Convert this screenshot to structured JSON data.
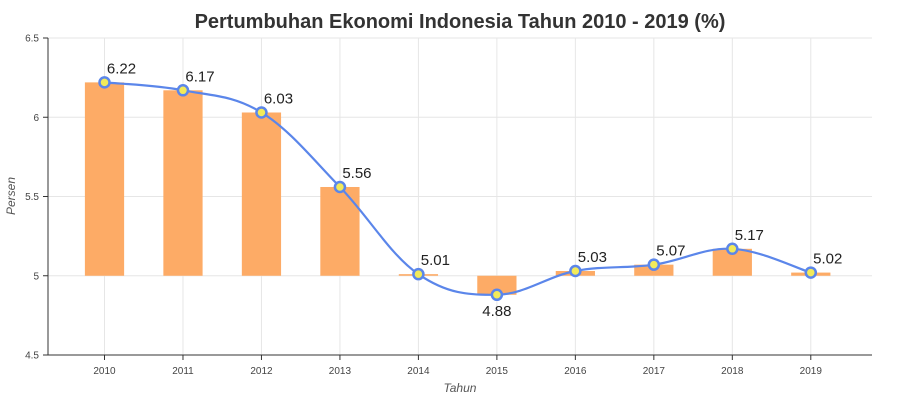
{
  "chart_data": {
    "type": "bar",
    "title": "Pertumbuhan Ekonomi Indonesia Tahun 2010 - 2019 (%)",
    "xlabel": "Tahun",
    "ylabel": "Persen",
    "categories": [
      "2010",
      "2011",
      "2012",
      "2013",
      "2014",
      "2015",
      "2016",
      "2017",
      "2018",
      "2019"
    ],
    "values": [
      6.22,
      6.17,
      6.03,
      5.56,
      5.01,
      4.88,
      5.03,
      5.07,
      5.17,
      5.02
    ],
    "data_labels": [
      "6.22",
      "6.17",
      "6.03",
      "5.56",
      "5.01",
      "4.88",
      "5.03",
      "5.07",
      "5.17",
      "5.02"
    ],
    "overlay": "line",
    "bar_baseline": 5,
    "ylim": [
      4.5,
      6.5
    ],
    "yticks": [
      4.5,
      5,
      5.5,
      6,
      6.5
    ],
    "ytick_labels": [
      "4.5",
      "5",
      "5.5",
      "6",
      "6.5"
    ],
    "grid": true,
    "legend": "none",
    "colors": {
      "bar": "#fdab66",
      "line": "#5b86ea",
      "marker_fill": "#f2ea5a",
      "marker_stroke": "#5b86ea"
    }
  }
}
